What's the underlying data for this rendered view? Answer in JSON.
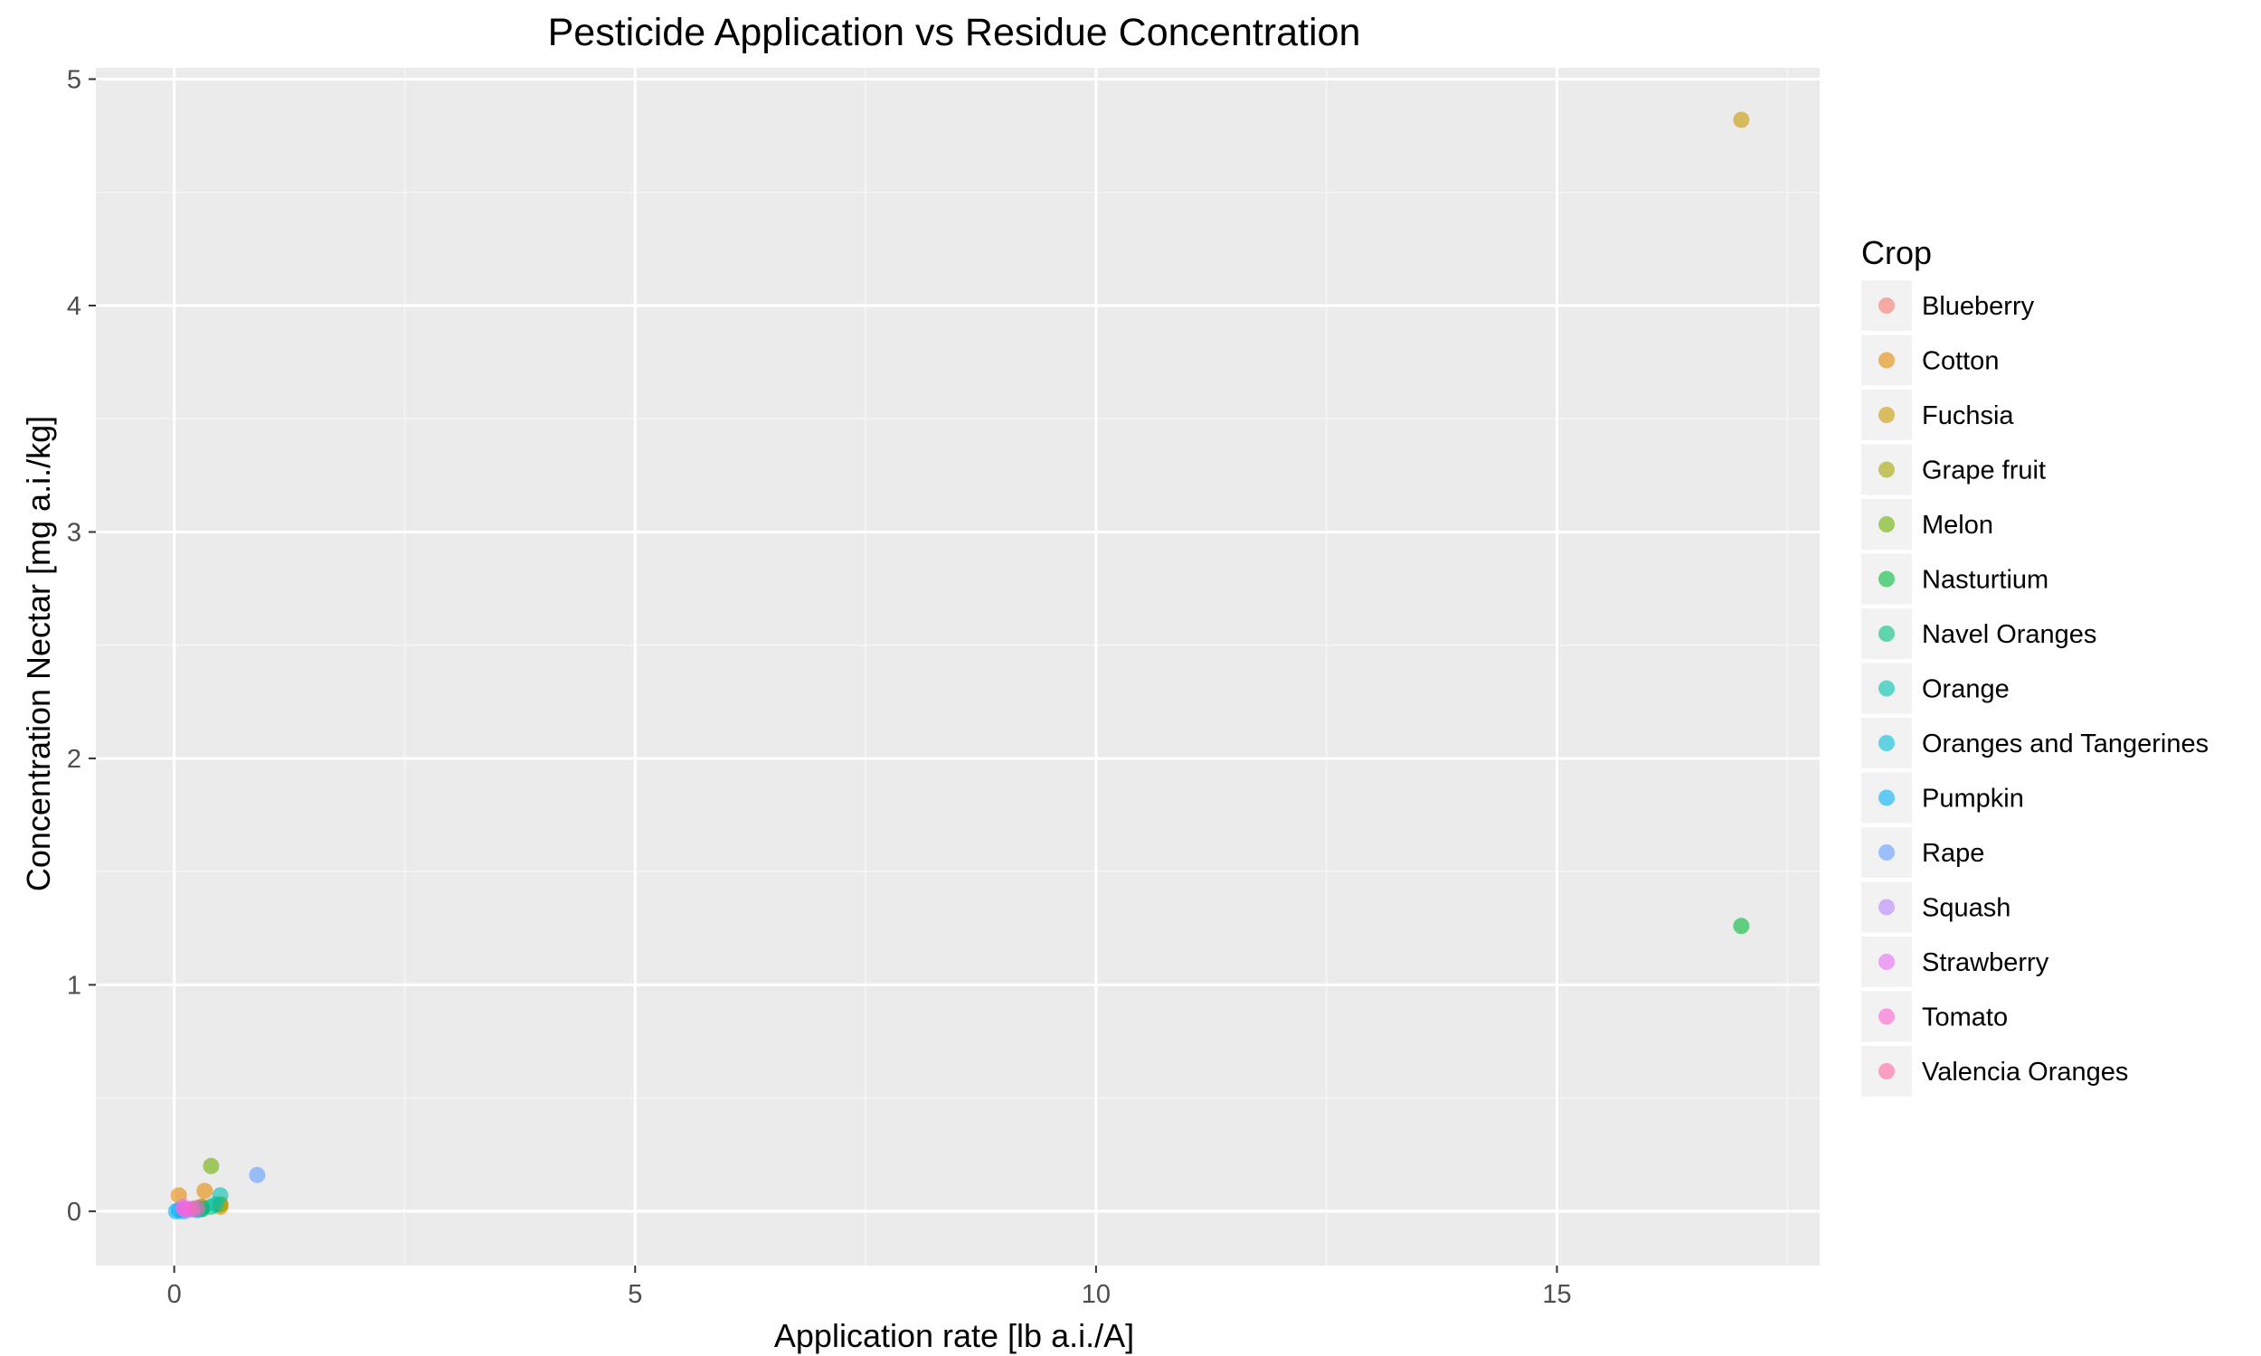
{
  "chart_data": {
    "type": "scatter",
    "title": "Pesticide Application vs Residue Concentration",
    "xlabel": "Application rate [lb a.i./A]",
    "ylabel": "Concentration Nectar [mg a.i./kg]",
    "xlim": [
      -0.85,
      17.85
    ],
    "ylim": [
      -0.24,
      5.05
    ],
    "x_ticks": [
      0,
      5,
      10,
      15
    ],
    "y_ticks": [
      0,
      1,
      2,
      3,
      4,
      5
    ],
    "grid": true,
    "legend_title": "Crop",
    "legend_position": "right",
    "series": [
      {
        "name": "Blueberry",
        "color": "#F8766D",
        "points": [
          {
            "x": 0.2,
            "y": 0.01
          },
          {
            "x": 0.3,
            "y": 0.02
          }
        ]
      },
      {
        "name": "Cotton",
        "color": "#E58700",
        "points": [
          {
            "x": 0.05,
            "y": 0.07
          },
          {
            "x": 0.33,
            "y": 0.09
          },
          {
            "x": 0.5,
            "y": 0.03
          }
        ]
      },
      {
        "name": "Fuchsia",
        "color": "#C99800",
        "points": [
          {
            "x": 17.0,
            "y": 4.82
          },
          {
            "x": 0.5,
            "y": 0.02
          }
        ]
      },
      {
        "name": "Grape fruit",
        "color": "#A3A500",
        "points": [
          {
            "x": 0.3,
            "y": 0.02
          },
          {
            "x": 0.5,
            "y": 0.03
          }
        ]
      },
      {
        "name": "Melon",
        "color": "#6BB100",
        "points": [
          {
            "x": 0.4,
            "y": 0.2
          },
          {
            "x": 0.25,
            "y": 0.01
          }
        ]
      },
      {
        "name": "Nasturtium",
        "color": "#00BA38",
        "points": [
          {
            "x": 17.0,
            "y": 1.26
          },
          {
            "x": 0.3,
            "y": 0.01
          }
        ]
      },
      {
        "name": "Navel Oranges",
        "color": "#00BF7D",
        "points": [
          {
            "x": 0.3,
            "y": 0.01
          },
          {
            "x": 0.4,
            "y": 0.02
          }
        ]
      },
      {
        "name": "Orange",
        "color": "#00C0AF",
        "points": [
          {
            "x": 0.5,
            "y": 0.07
          },
          {
            "x": 0.45,
            "y": 0.03
          }
        ]
      },
      {
        "name": "Oranges and Tangerines",
        "color": "#00BCD8",
        "points": [
          {
            "x": 0.2,
            "y": 0.01
          },
          {
            "x": 0.25,
            "y": 0.005
          }
        ]
      },
      {
        "name": "Pumpkin",
        "color": "#00B0F6",
        "points": [
          {
            "x": 0.02,
            "y": 0.0
          },
          {
            "x": 0.05,
            "y": 0.005
          },
          {
            "x": 0.1,
            "y": 0.0
          }
        ]
      },
      {
        "name": "Rape",
        "color": "#619CFF",
        "points": [
          {
            "x": 0.9,
            "y": 0.16
          }
        ]
      },
      {
        "name": "Squash",
        "color": "#B983FF",
        "points": [
          {
            "x": 0.1,
            "y": 0.01
          },
          {
            "x": 0.15,
            "y": 0.005
          }
        ]
      },
      {
        "name": "Strawberry",
        "color": "#E76BF3",
        "points": [
          {
            "x": 0.1,
            "y": 0.02
          },
          {
            "x": 0.2,
            "y": 0.01
          }
        ]
      },
      {
        "name": "Tomato",
        "color": "#FD61D1",
        "points": [
          {
            "x": 0.12,
            "y": 0.01
          }
        ]
      },
      {
        "name": "Valencia Oranges",
        "color": "#FF67A4",
        "points": [
          {
            "x": 0.25,
            "y": 0.015
          }
        ]
      }
    ]
  }
}
